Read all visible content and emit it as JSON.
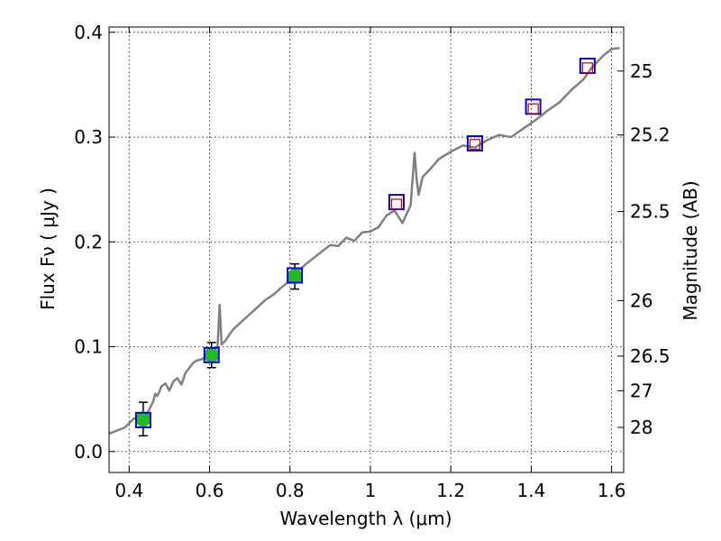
{
  "chart_data": {
    "type": "line",
    "xlabel": "Wavelength  λ (μm)",
    "ylabel": "Flux  Fν ( μJy )",
    "ylabel_right": "Magnitude (AB)",
    "xlim": [
      0.35,
      1.63
    ],
    "ylim": [
      -0.02,
      0.405
    ],
    "x_ticks": [
      0.4,
      0.6,
      0.8,
      1.0,
      1.2,
      1.4,
      1.6
    ],
    "x_tick_labels": [
      "0.4",
      "0.6",
      "0.8",
      "1",
      "1.2",
      "1.4",
      "1.6"
    ],
    "y_ticks": [
      0.0,
      0.1,
      0.2,
      0.3,
      0.4
    ],
    "y_tick_labels": [
      "0.0",
      "0.1",
      "0.2",
      "0.3",
      "0.4"
    ],
    "right_ticks": [
      {
        "label": "25",
        "flux": 0.363
      },
      {
        "label": "25.2",
        "flux": 0.302
      },
      {
        "label": "25.5",
        "flux": 0.229
      },
      {
        "label": "26",
        "flux": 0.144
      },
      {
        "label": "26.5",
        "flux": 0.091
      },
      {
        "label": "27",
        "flux": 0.058
      },
      {
        "label": "28",
        "flux": 0.023
      }
    ],
    "grid": true,
    "colors": {
      "spectrum": "#808080",
      "photometry_fill": "#22bb22",
      "model_box": "#0000ee",
      "inner_box": "#cc0000",
      "error_bar": "#000000"
    },
    "series": [
      {
        "kind": "line",
        "x": [
          0.35,
          0.37,
          0.39,
          0.4,
          0.41,
          0.42,
          0.43,
          0.44,
          0.45,
          0.46,
          0.465,
          0.47,
          0.475,
          0.48,
          0.49,
          0.5,
          0.51,
          0.52,
          0.53,
          0.54,
          0.55,
          0.56,
          0.57,
          0.58,
          0.59,
          0.6,
          0.61,
          0.62,
          0.625,
          0.63,
          0.64,
          0.65,
          0.66,
          0.68,
          0.7,
          0.72,
          0.74,
          0.76,
          0.78,
          0.8,
          0.81,
          0.82,
          0.84,
          0.86,
          0.88,
          0.9,
          0.92,
          0.94,
          0.96,
          0.98,
          1.0,
          1.02,
          1.04,
          1.06,
          1.08,
          1.1,
          1.11,
          1.115,
          1.12,
          1.13,
          1.15,
          1.17,
          1.2,
          1.23,
          1.26,
          1.29,
          1.32,
          1.35,
          1.38,
          1.41,
          1.44,
          1.47,
          1.5,
          1.53,
          1.55,
          1.58,
          1.6,
          1.62
        ],
        "y": [
          0.017,
          0.02,
          0.023,
          0.027,
          0.031,
          0.033,
          0.028,
          0.034,
          0.04,
          0.048,
          0.055,
          0.053,
          0.057,
          0.062,
          0.065,
          0.058,
          0.067,
          0.07,
          0.064,
          0.075,
          0.08,
          0.085,
          0.087,
          0.088,
          0.09,
          0.093,
          0.097,
          0.1,
          0.14,
          0.102,
          0.106,
          0.112,
          0.117,
          0.124,
          0.131,
          0.138,
          0.145,
          0.15,
          0.157,
          0.163,
          0.17,
          0.172,
          0.179,
          0.185,
          0.191,
          0.197,
          0.196,
          0.204,
          0.201,
          0.209,
          0.21,
          0.214,
          0.225,
          0.23,
          0.218,
          0.235,
          0.285,
          0.26,
          0.245,
          0.262,
          0.27,
          0.279,
          0.286,
          0.292,
          0.29,
          0.297,
          0.302,
          0.3,
          0.308,
          0.316,
          0.325,
          0.333,
          0.345,
          0.355,
          0.366,
          0.378,
          0.384,
          0.385
        ]
      },
      {
        "kind": "photometry",
        "x": [
          0.435,
          0.605,
          0.812
        ],
        "y": [
          0.031,
          0.092,
          0.167
        ],
        "yerr": [
          0.016,
          0.012,
          0.012
        ]
      },
      {
        "kind": "model-boxes",
        "x": [
          0.435,
          0.605,
          0.812,
          1.065,
          1.26,
          1.405,
          1.54
        ],
        "y": [
          0.03,
          0.092,
          0.168,
          0.238,
          0.294,
          0.329,
          0.368
        ]
      },
      {
        "kind": "inner-boxes",
        "x": [
          1.065,
          1.26,
          1.405,
          1.54
        ],
        "y": [
          0.236,
          0.293,
          0.327,
          0.366
        ]
      }
    ]
  }
}
